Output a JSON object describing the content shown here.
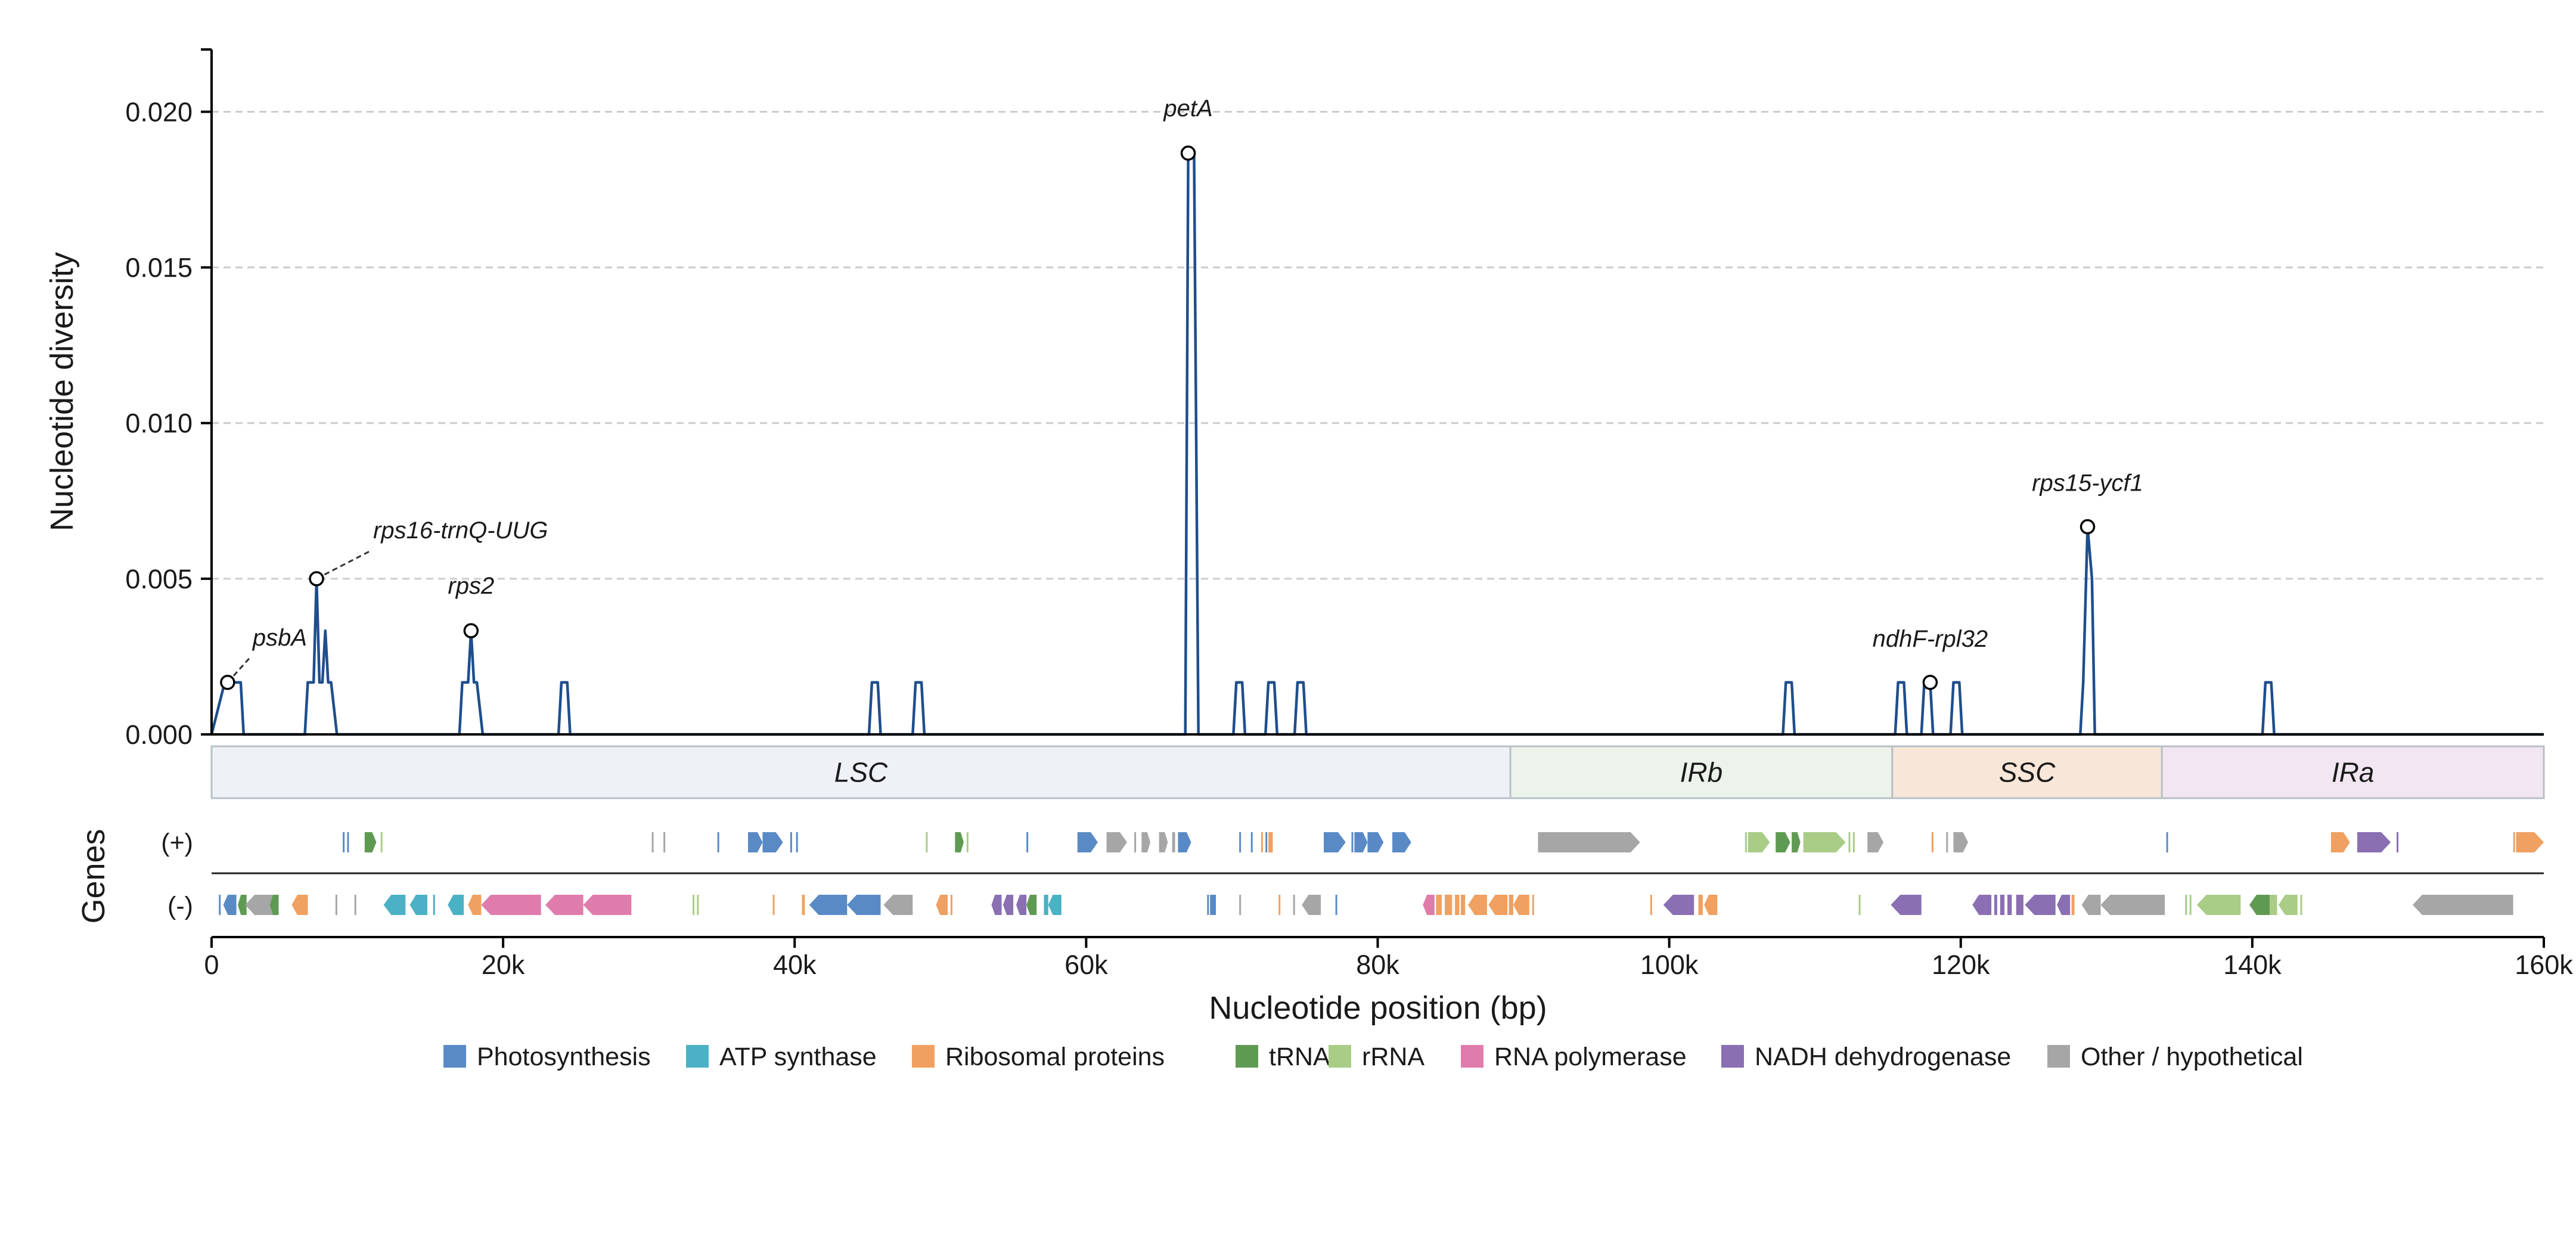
{
  "chart_data": {
    "type": "line",
    "xlabel": "Nucleotide position (bp)",
    "ylabel": "Nucleotide diversity",
    "xlim": [
      0,
      160000
    ],
    "ylim": [
      0,
      0.022
    ],
    "x_ticks": [
      {
        "value": 0,
        "label": "0"
      },
      {
        "value": 20000,
        "label": "20k"
      },
      {
        "value": 40000,
        "label": "40k"
      },
      {
        "value": 60000,
        "label": "60k"
      },
      {
        "value": 80000,
        "label": "80k"
      },
      {
        "value": 100000,
        "label": "100k"
      },
      {
        "value": 120000,
        "label": "120k"
      },
      {
        "value": 140000,
        "label": "140k"
      },
      {
        "value": 160000,
        "label": "160k"
      }
    ],
    "y_ticks": [
      {
        "value": 0,
        "label": "0.000"
      },
      {
        "value": 0.005,
        "label": "0.005"
      },
      {
        "value": 0.01,
        "label": "0.010"
      },
      {
        "value": 0.015,
        "label": "0.015"
      },
      {
        "value": 0.02,
        "label": "0.020"
      }
    ],
    "grid": "horizontal dashed",
    "line_color": "#1f4e8c",
    "baseline_windows": [
      {
        "x_start": 450,
        "x_end": 2200
      },
      {
        "x_start": 6400,
        "x_end": 8600
      },
      {
        "x_start": 17000,
        "x_end": 18600
      },
      {
        "x_start": 23800,
        "x_end": 24600
      },
      {
        "x_start": 45100,
        "x_end": 45900
      },
      {
        "x_start": 48100,
        "x_end": 48900
      },
      {
        "x_start": 66800,
        "x_end": 67700
      },
      {
        "x_start": 70100,
        "x_end": 70900
      },
      {
        "x_start": 72300,
        "x_end": 73100
      },
      {
        "x_start": 74300,
        "x_end": 75100
      },
      {
        "x_start": 107800,
        "x_end": 108600
      },
      {
        "x_start": 115500,
        "x_end": 116300
      },
      {
        "x_start": 117300,
        "x_end": 118100
      },
      {
        "x_start": 119300,
        "x_end": 120100
      },
      {
        "x_start": 128200,
        "x_end": 129200
      },
      {
        "x_start": 140700,
        "x_end": 141500
      }
    ],
    "series": [
      {
        "x": [
          0,
          900,
          1100,
          1400,
          1800,
          2000,
          2200,
          6400,
          6600,
          7000,
          7200,
          7400,
          7600,
          7800,
          8000,
          8200,
          8600,
          17000,
          17200,
          17600,
          17800,
          18000,
          18200,
          18600,
          23800,
          24000,
          24400,
          24600,
          45100,
          45300,
          45700,
          45900,
          48100,
          48300,
          48700,
          48900,
          66800,
          67000,
          67400,
          67700,
          70100,
          70300,
          70700,
          70900,
          72300,
          72500,
          72900,
          73100,
          74300,
          74500,
          74900,
          75100,
          107800,
          108000,
          108400,
          108600,
          115500,
          115700,
          116100,
          116300,
          117300,
          117500,
          117900,
          118100,
          119300,
          119500,
          119900,
          120100,
          128200,
          128400,
          128700,
          129000,
          129200,
          140700,
          140900,
          141300,
          141500,
          160000
        ],
        "y": [
          0,
          0.00167,
          0.00167,
          0.00167,
          0.00167,
          0.00167,
          0,
          0,
          0.00167,
          0.00167,
          0.005,
          0.00167,
          0.00167,
          0.00333,
          0.00167,
          0.00167,
          0,
          0,
          0.00167,
          0.00167,
          0.00333,
          0.00167,
          0.00167,
          0,
          0,
          0.00167,
          0.00167,
          0,
          0,
          0.00167,
          0.00167,
          0,
          0,
          0.00167,
          0.00167,
          0,
          0,
          0.01867,
          0.01867,
          0,
          0,
          0.00167,
          0.00167,
          0,
          0,
          0.00167,
          0.00167,
          0,
          0,
          0.00167,
          0.00167,
          0,
          0,
          0.00167,
          0.00167,
          0,
          0,
          0.00167,
          0.00167,
          0,
          0,
          0.00167,
          0.00167,
          0,
          0,
          0.00167,
          0.00167,
          0,
          0,
          0.00167,
          0.00667,
          0.005,
          0,
          0,
          0.00167,
          0.00167,
          0,
          0
        ]
      }
    ],
    "peaks": [
      {
        "label": "psbA",
        "x": 1100,
        "y": 0.00167
      },
      {
        "label": "rps16-trnQ-UUG",
        "x": 7200,
        "y": 0.005
      },
      {
        "label": "rps2",
        "x": 17800,
        "y": 0.00333
      },
      {
        "label": "petA",
        "x": 67000,
        "y": 0.01867
      },
      {
        "label": "ndhF-rpl32",
        "x": 117900,
        "y": 0.00167
      },
      {
        "label": "rps15-ycf1",
        "x": 128700,
        "y": 0.00667
      }
    ],
    "regions": [
      {
        "name": "LSC",
        "start": 0,
        "end": 89100,
        "color": "#eef2f6"
      },
      {
        "name": "IRb",
        "start": 89100,
        "end": 115300,
        "color": "#ecf3ea"
      },
      {
        "name": "SSC",
        "start": 115300,
        "end": 133800,
        "color": "#f8e7d8"
      },
      {
        "name": "IRa",
        "start": 133800,
        "end": 160000,
        "color": "#f1e6f1"
      }
    ],
    "gene_track": {
      "title": "Genes",
      "plus_label": "(+)",
      "minus_label": "(-)",
      "categories": [
        {
          "name": "Photosynthesis",
          "color": "#5a8ac6"
        },
        {
          "name": "ATP synthase",
          "color": "#4bb1c4"
        },
        {
          "name": "Ribosomal proteins",
          "color": "#f0a060"
        },
        {
          "name": "tRNA",
          "color": "#5f9a52"
        },
        {
          "name": "rRNA",
          "color": "#a9cc86"
        },
        {
          "name": "RNA polymerase",
          "color": "#e07cab"
        },
        {
          "name": "NADH dehydrogenase",
          "color": "#8a6fb3"
        },
        {
          "name": "Other / hypothetical",
          "color": "#a6a6a6"
        }
      ],
      "plus": [
        {
          "start": 9000,
          "end": 9100,
          "cat": 0
        },
        {
          "start": 9300,
          "end": 9400,
          "cat": 0
        },
        {
          "start": 10500,
          "end": 11300,
          "cat": 3
        },
        {
          "start": 11600,
          "end": 11700,
          "cat": 4
        },
        {
          "start": 30200,
          "end": 30300,
          "cat": 7
        },
        {
          "start": 31000,
          "end": 31100,
          "cat": 7
        },
        {
          "start": 34700,
          "end": 34800,
          "cat": 0
        },
        {
          "start": 36800,
          "end": 37800,
          "cat": 0
        },
        {
          "start": 37800,
          "end": 39200,
          "cat": 0
        },
        {
          "start": 39700,
          "end": 39800,
          "cat": 0
        },
        {
          "start": 40100,
          "end": 40200,
          "cat": 0
        },
        {
          "start": 49000,
          "end": 49100,
          "cat": 4
        },
        {
          "start": 51000,
          "end": 51600,
          "cat": 3
        },
        {
          "start": 51800,
          "end": 51900,
          "cat": 4
        },
        {
          "start": 55900,
          "end": 56000,
          "cat": 0
        },
        {
          "start": 59400,
          "end": 60800,
          "cat": 0
        },
        {
          "start": 61400,
          "end": 62800,
          "cat": 7
        },
        {
          "start": 63300,
          "end": 63400,
          "cat": 7
        },
        {
          "start": 63800,
          "end": 64400,
          "cat": 7
        },
        {
          "start": 65000,
          "end": 65600,
          "cat": 7
        },
        {
          "start": 65900,
          "end": 66100,
          "cat": 7
        },
        {
          "start": 66300,
          "end": 67200,
          "cat": 0
        },
        {
          "start": 70500,
          "end": 70600,
          "cat": 0
        },
        {
          "start": 71300,
          "end": 71400,
          "cat": 0
        },
        {
          "start": 72000,
          "end": 72100,
          "cat": 2
        },
        {
          "start": 72300,
          "end": 72400,
          "cat": 0
        },
        {
          "start": 72500,
          "end": 72800,
          "cat": 2
        },
        {
          "start": 76300,
          "end": 77800,
          "cat": 0
        },
        {
          "start": 78200,
          "end": 78300,
          "cat": 0
        },
        {
          "start": 78400,
          "end": 79300,
          "cat": 0
        },
        {
          "start": 79300,
          "end": 80400,
          "cat": 0
        },
        {
          "start": 81000,
          "end": 82300,
          "cat": 0
        },
        {
          "start": 91000,
          "end": 98000,
          "cat": 7
        },
        {
          "start": 105200,
          "end": 105300,
          "cat": 4
        },
        {
          "start": 105400,
          "end": 106900,
          "cat": 4
        },
        {
          "start": 107300,
          "end": 108300,
          "cat": 3
        },
        {
          "start": 108400,
          "end": 109000,
          "cat": 3
        },
        {
          "start": 109200,
          "end": 112100,
          "cat": 4
        },
        {
          "start": 112300,
          "end": 112400,
          "cat": 4
        },
        {
          "start": 112600,
          "end": 112700,
          "cat": 4
        },
        {
          "start": 113600,
          "end": 114700,
          "cat": 7
        },
        {
          "start": 118000,
          "end": 118100,
          "cat": 2
        },
        {
          "start": 119000,
          "end": 119100,
          "cat": 7
        },
        {
          "start": 119500,
          "end": 120500,
          "cat": 7
        },
        {
          "start": 134100,
          "end": 134200,
          "cat": 0
        },
        {
          "start": 145400,
          "end": 146700,
          "cat": 2
        },
        {
          "start": 147200,
          "end": 149500,
          "cat": 6
        },
        {
          "start": 149900,
          "end": 150000,
          "cat": 6
        },
        {
          "start": 157900,
          "end": 158000,
          "cat": 2
        },
        {
          "start": 158100,
          "end": 160000,
          "cat": 2
        }
      ],
      "minus": [
        {
          "start": 500,
          "end": 600,
          "cat": 0
        },
        {
          "start": 800,
          "end": 1700,
          "cat": 0
        },
        {
          "start": 1800,
          "end": 2400,
          "cat": 3
        },
        {
          "start": 2300,
          "end": 4300,
          "cat": 7
        },
        {
          "start": 4000,
          "end": 4600,
          "cat": 3
        },
        {
          "start": 5500,
          "end": 6600,
          "cat": 2
        },
        {
          "start": 8500,
          "end": 8600,
          "cat": 7
        },
        {
          "start": 9800,
          "end": 9900,
          "cat": 7
        },
        {
          "start": 11800,
          "end": 13300,
          "cat": 1
        },
        {
          "start": 13600,
          "end": 14800,
          "cat": 1
        },
        {
          "start": 15200,
          "end": 15300,
          "cat": 1
        },
        {
          "start": 16200,
          "end": 17300,
          "cat": 1
        },
        {
          "start": 17600,
          "end": 18500,
          "cat": 2
        },
        {
          "start": 18500,
          "end": 22600,
          "cat": 5
        },
        {
          "start": 22900,
          "end": 25500,
          "cat": 5
        },
        {
          "start": 25500,
          "end": 28800,
          "cat": 5
        },
        {
          "start": 33000,
          "end": 33100,
          "cat": 4
        },
        {
          "start": 33300,
          "end": 33400,
          "cat": 4
        },
        {
          "start": 38500,
          "end": 38600,
          "cat": 2
        },
        {
          "start": 40500,
          "end": 40700,
          "cat": 2
        },
        {
          "start": 41000,
          "end": 43600,
          "cat": 0
        },
        {
          "start": 43600,
          "end": 45900,
          "cat": 0
        },
        {
          "start": 46100,
          "end": 48100,
          "cat": 7
        },
        {
          "start": 49700,
          "end": 50500,
          "cat": 2
        },
        {
          "start": 50700,
          "end": 50800,
          "cat": 2
        },
        {
          "start": 53500,
          "end": 54200,
          "cat": 6
        },
        {
          "start": 54300,
          "end": 55000,
          "cat": 6
        },
        {
          "start": 55200,
          "end": 55900,
          "cat": 6
        },
        {
          "start": 55900,
          "end": 56600,
          "cat": 3
        },
        {
          "start": 57100,
          "end": 57400,
          "cat": 1
        },
        {
          "start": 57400,
          "end": 58300,
          "cat": 1
        },
        {
          "start": 68300,
          "end": 68400,
          "cat": 0
        },
        {
          "start": 68500,
          "end": 68900,
          "cat": 0
        },
        {
          "start": 70500,
          "end": 70600,
          "cat": 7
        },
        {
          "start": 73200,
          "end": 73300,
          "cat": 2
        },
        {
          "start": 74200,
          "end": 74300,
          "cat": 7
        },
        {
          "start": 74800,
          "end": 76100,
          "cat": 7
        },
        {
          "start": 77100,
          "end": 77200,
          "cat": 0
        },
        {
          "start": 83100,
          "end": 83900,
          "cat": 5
        },
        {
          "start": 84000,
          "end": 84400,
          "cat": 2
        },
        {
          "start": 84600,
          "end": 85100,
          "cat": 2
        },
        {
          "start": 85300,
          "end": 85600,
          "cat": 2
        },
        {
          "start": 85700,
          "end": 86000,
          "cat": 2
        },
        {
          "start": 86200,
          "end": 87500,
          "cat": 2
        },
        {
          "start": 87600,
          "end": 88900,
          "cat": 2
        },
        {
          "start": 89000,
          "end": 89300,
          "cat": 2
        },
        {
          "start": 89300,
          "end": 90400,
          "cat": 2
        },
        {
          "start": 90600,
          "end": 90700,
          "cat": 2
        },
        {
          "start": 98700,
          "end": 98800,
          "cat": 2
        },
        {
          "start": 99600,
          "end": 101700,
          "cat": 6
        },
        {
          "start": 102000,
          "end": 102300,
          "cat": 2
        },
        {
          "start": 102400,
          "end": 103300,
          "cat": 2
        },
        {
          "start": 113000,
          "end": 113100,
          "cat": 4
        },
        {
          "start": 115200,
          "end": 117300,
          "cat": 6
        },
        {
          "start": 120800,
          "end": 122100,
          "cat": 6
        },
        {
          "start": 122300,
          "end": 122500,
          "cat": 6
        },
        {
          "start": 122700,
          "end": 123000,
          "cat": 6
        },
        {
          "start": 123200,
          "end": 123500,
          "cat": 6
        },
        {
          "start": 123800,
          "end": 124300,
          "cat": 6
        },
        {
          "start": 124400,
          "end": 126500,
          "cat": 6
        },
        {
          "start": 126600,
          "end": 127500,
          "cat": 6
        },
        {
          "start": 127600,
          "end": 127800,
          "cat": 2
        },
        {
          "start": 128300,
          "end": 129600,
          "cat": 7
        },
        {
          "start": 129600,
          "end": 134000,
          "cat": 7
        },
        {
          "start": 135400,
          "end": 135500,
          "cat": 4
        },
        {
          "start": 135700,
          "end": 135800,
          "cat": 4
        },
        {
          "start": 136200,
          "end": 139200,
          "cat": 4
        },
        {
          "start": 139800,
          "end": 141200,
          "cat": 3
        },
        {
          "start": 141200,
          "end": 141700,
          "cat": 4
        },
        {
          "start": 141800,
          "end": 143100,
          "cat": 4
        },
        {
          "start": 143300,
          "end": 143400,
          "cat": 4
        },
        {
          "start": 151000,
          "end": 157900,
          "cat": 7
        }
      ]
    }
  }
}
